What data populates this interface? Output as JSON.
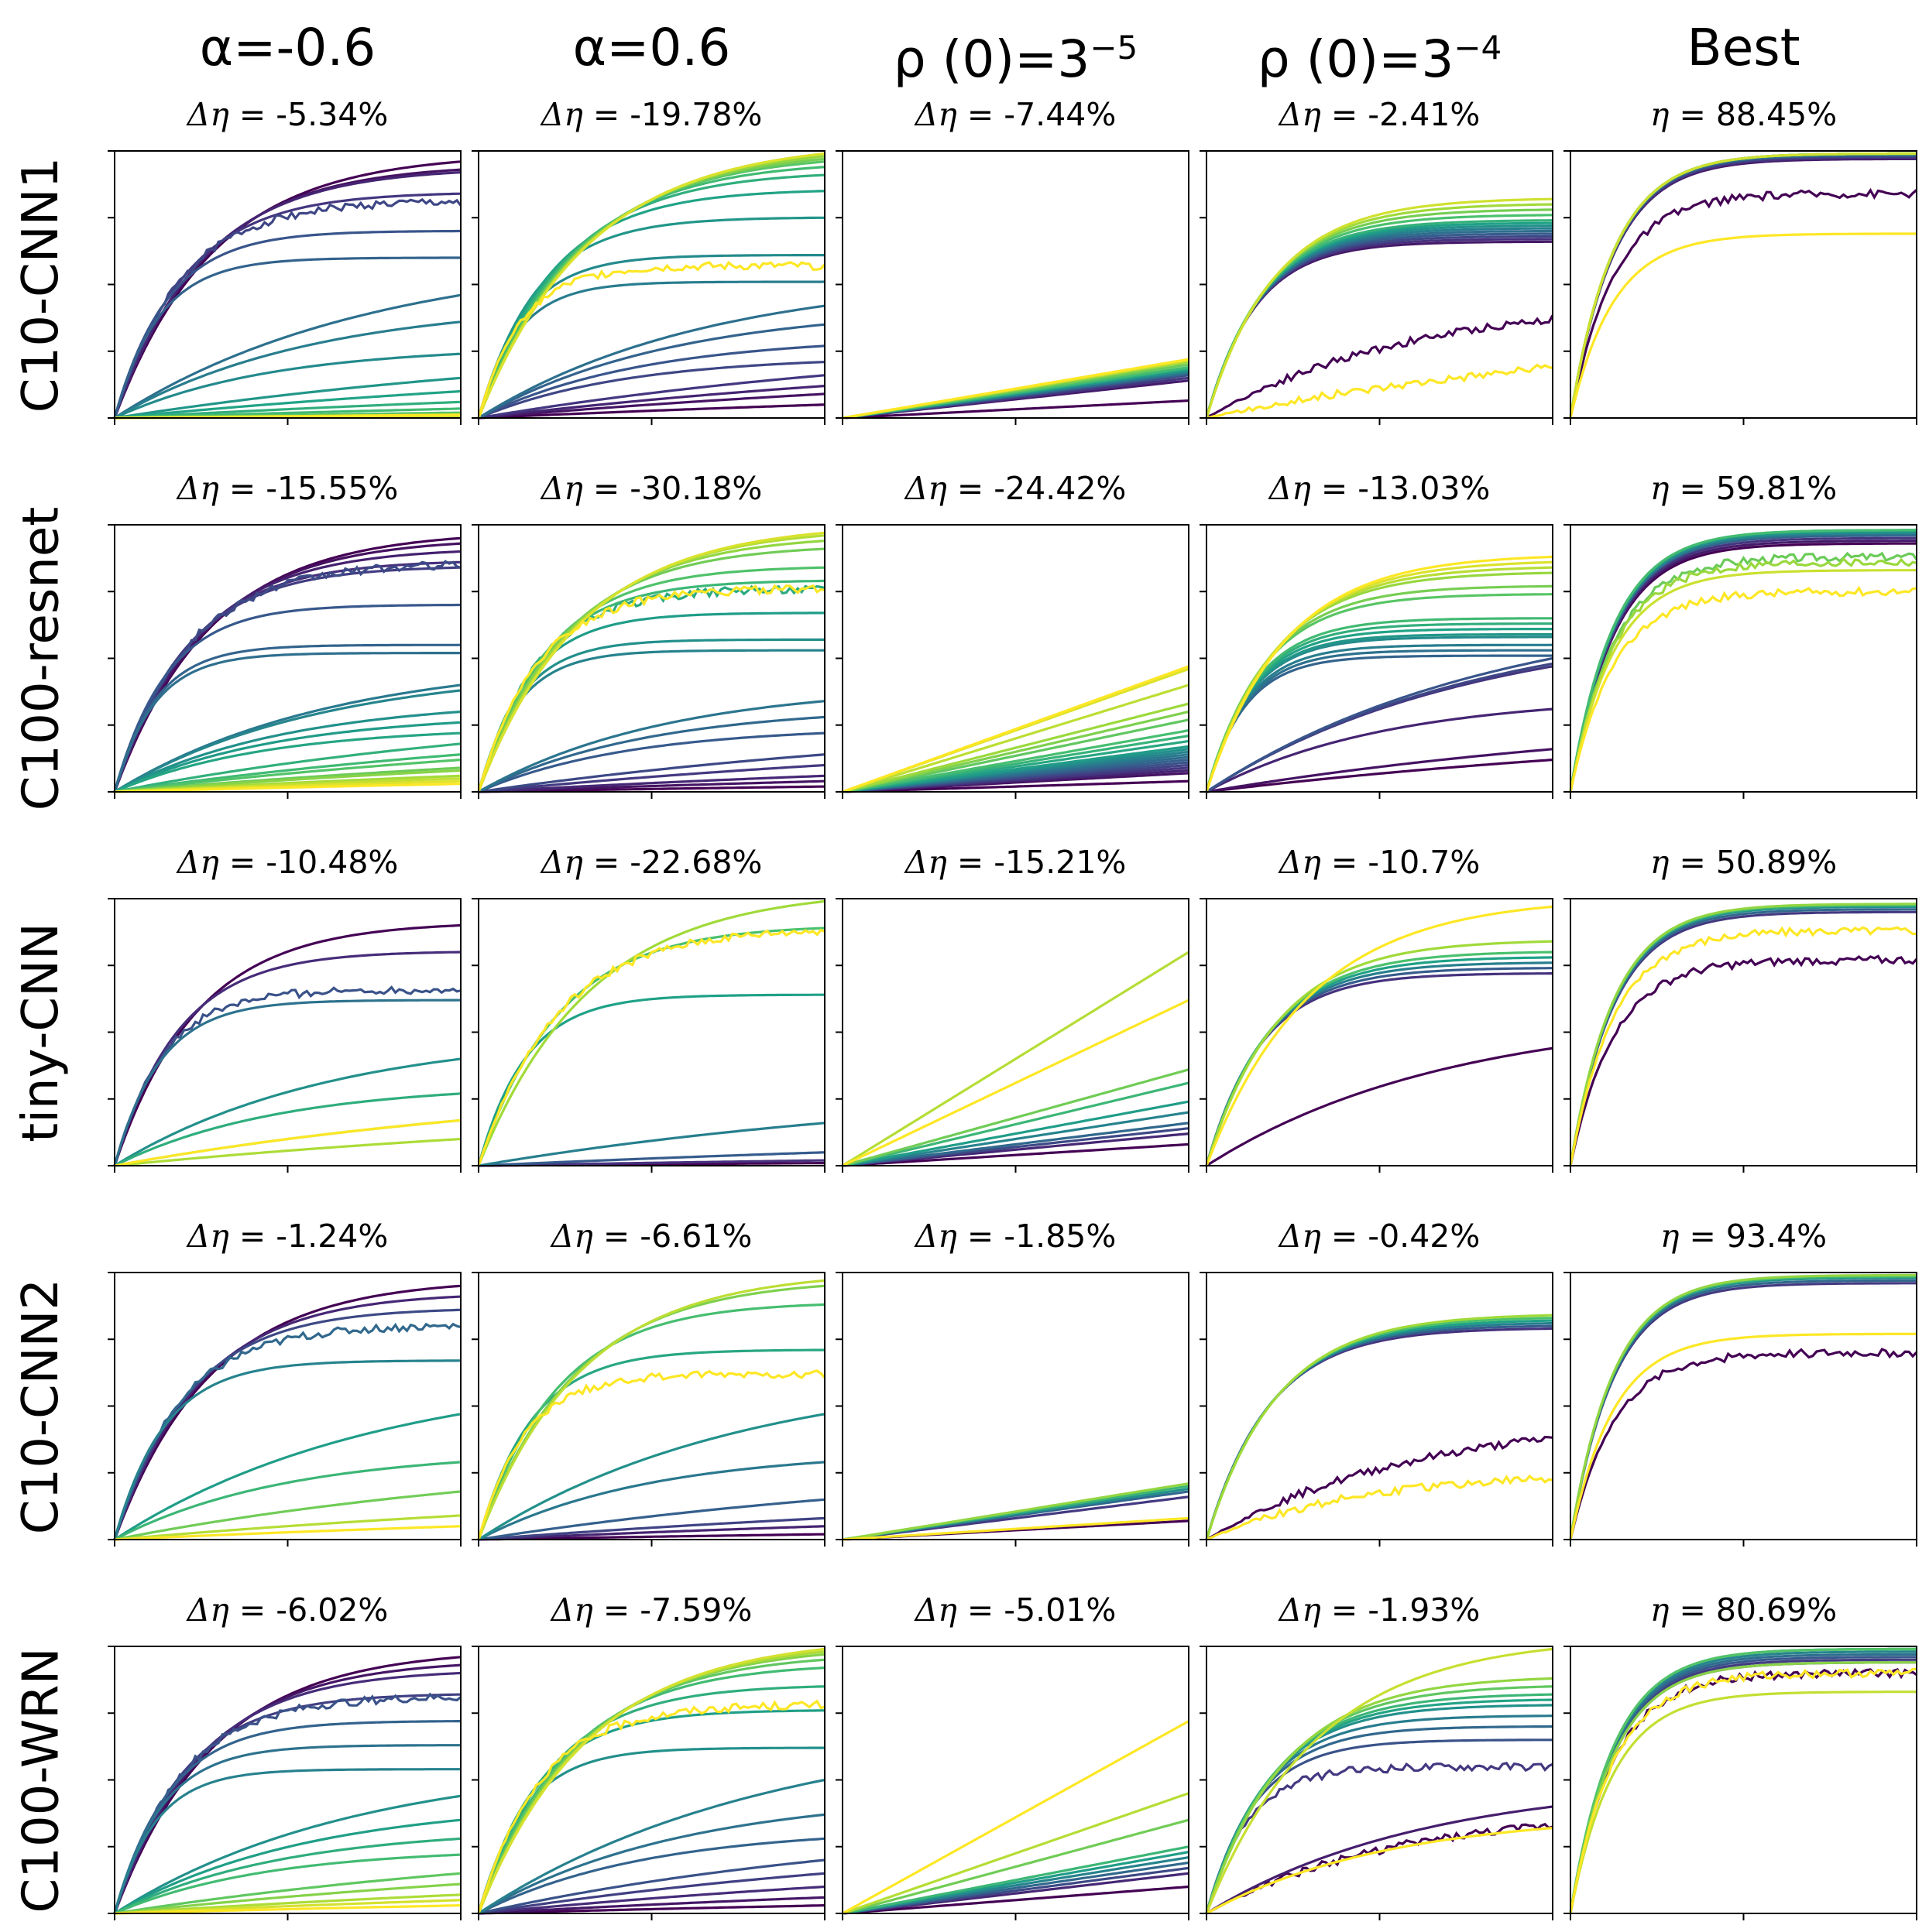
{
  "figure": {
    "column_headers": [
      {
        "label": "α=-0.6"
      },
      {
        "label": "α=0.6"
      },
      {
        "label": "ρ (0)=3",
        "sup": "−5"
      },
      {
        "label": "ρ (0)=3",
        "sup": "−4"
      },
      {
        "label": "Best"
      }
    ],
    "row_headers": [
      "C10-CNN1",
      "C100-resnet",
      "tiny-CNN",
      "C10-CNN2",
      "C100-WRN"
    ],
    "colormap": [
      "#440154",
      "#46327e",
      "#365c8d",
      "#277f8e",
      "#1fa187",
      "#4ac16d",
      "#a0da39",
      "#fde725"
    ]
  },
  "chart_data": [
    {
      "type": "line",
      "row": "C10-CNN1",
      "column": "α=-0.6",
      "title_symbol": "Δη",
      "title_value": " = -5.34%",
      "ylim": [
        0,
        1
      ],
      "series": [
        {
          "values": [
            0.96,
            0.93,
            0.92,
            0.84,
            0.81,
            0.7,
            0.6,
            0.46,
            0.36,
            0.24,
            0.15,
            0.1,
            0.06,
            0.035,
            0.02,
            0.013,
            0.008,
            0.005,
            0.01,
            0.012
          ]
        }
      ],
      "noisy": [
        0.81
      ]
    },
    {
      "type": "line",
      "row": "C10-CNN1",
      "column": "α=0.6",
      "title_symbol": "Δη",
      "title_value": " = -19.78%",
      "ylim": [
        0,
        1
      ],
      "series": [
        {
          "values": [
            0.05,
            0.09,
            0.12,
            0.16,
            0.21,
            0.27,
            0.35,
            0.42,
            0.51,
            0.61,
            0.75,
            0.85,
            0.91,
            0.94,
            0.96,
            0.97,
            0.98,
            0.99,
            0.99,
            0.57
          ]
        }
      ],
      "noisy": [
        0.57
      ]
    },
    {
      "type": "line",
      "row": "C10-CNN1",
      "column": "ρ (0)=3⁻⁵",
      "title_symbol": "Δη",
      "title_value": " = -7.44%",
      "ylim": [
        0,
        1
      ],
      "series": [
        {
          "values": [
            0.065,
            0.14,
            0.15,
            0.16,
            0.165,
            0.17,
            0.175,
            0.18,
            0.185,
            0.19,
            0.2,
            0.21,
            0.215,
            0.22
          ]
        }
      ],
      "noisy": []
    },
    {
      "type": "line",
      "row": "C10-CNN1",
      "column": "ρ (0)=3⁻⁴",
      "title_symbol": "Δη",
      "title_value": " = -2.41%",
      "ylim": [
        0,
        1
      ],
      "series": [
        {
          "values": [
            0.37,
            0.66,
            0.67,
            0.68,
            0.69,
            0.7,
            0.71,
            0.72,
            0.73,
            0.74,
            0.76,
            0.78,
            0.8,
            0.82,
            0.19
          ]
        }
      ],
      "noisy": [
        0.37,
        0.19
      ]
    },
    {
      "type": "line",
      "row": "C10-CNN1",
      "column": "Best",
      "title_symbol": "η",
      "title_value": " = 88.45%",
      "ylim": [
        0,
        1
      ],
      "series": [
        {
          "values": [
            0.84,
            0.97,
            0.975,
            0.98,
            0.985,
            0.985,
            0.99,
            0.99,
            0.99,
            0.99,
            0.99,
            0.99,
            0.99,
            0.99,
            0.69
          ]
        }
      ],
      "noisy": [
        0.84
      ]
    },
    {
      "type": "line",
      "row": "C100-resnet",
      "column": "α=-0.6",
      "title_symbol": "Δη",
      "title_value": " = -15.55%",
      "ylim": [
        0,
        1
      ],
      "series": [
        {
          "values": [
            0.95,
            0.93,
            0.9,
            0.86,
            0.84,
            0.85,
            0.7,
            0.55,
            0.52,
            0.4,
            0.38,
            0.3,
            0.26,
            0.22,
            0.18,
            0.14,
            0.12,
            0.09,
            0.08,
            0.06,
            0.05,
            0.04,
            0.03
          ]
        }
      ],
      "noisy": [
        0.85
      ]
    },
    {
      "type": "line",
      "row": "C100-resnet",
      "column": "α=0.6",
      "title_symbol": "Δη",
      "title_value": " = -30.18%",
      "ylim": [
        0,
        1
      ],
      "series": [
        {
          "values": [
            0.02,
            0.04,
            0.06,
            0.1,
            0.14,
            0.22,
            0.28,
            0.34,
            0.53,
            0.57,
            0.67,
            0.76,
            0.79,
            0.84,
            0.91,
            0.94,
            0.96,
            0.97,
            0.76
          ]
        }
      ],
      "noisy": [
        0.76
      ]
    },
    {
      "type": "line",
      "row": "C100-resnet",
      "column": "ρ (0)=3⁻⁵",
      "title_symbol": "Δη",
      "title_value": " = -24.42%",
      "ylim": [
        0,
        1
      ],
      "series": [
        {
          "values": [
            0.04,
            0.07,
            0.08,
            0.09,
            0.1,
            0.11,
            0.12,
            0.13,
            0.14,
            0.15,
            0.16,
            0.17,
            0.19,
            0.21,
            0.23,
            0.27,
            0.3,
            0.33,
            0.4,
            0.46,
            0.47
          ]
        }
      ],
      "noisy": []
    },
    {
      "type": "line",
      "row": "C100-resnet",
      "column": "ρ (0)=3⁻⁴",
      "title_symbol": "Δη",
      "title_value": " = -13.03%",
      "ylim": [
        0,
        1
      ],
      "series": [
        {
          "values": [
            0.12,
            0.16,
            0.31,
            0.47,
            0.48,
            0.5,
            0.51,
            0.53,
            0.55,
            0.58,
            0.59,
            0.61,
            0.63,
            0.65,
            0.74,
            0.77,
            0.82,
            0.84,
            0.86,
            0.88
          ]
        }
      ],
      "noisy": []
    },
    {
      "type": "line",
      "row": "C100-resnet",
      "column": "Best",
      "title_symbol": "η",
      "title_value": " = 59.81%",
      "ylim": [
        0,
        1
      ],
      "series": [
        {
          "values": [
            0.93,
            0.94,
            0.95,
            0.96,
            0.96,
            0.965,
            0.97,
            0.975,
            0.98,
            0.98,
            0.88,
            0.86,
            0.83,
            0.75
          ]
        }
      ],
      "noisy": [
        0.88,
        0.86,
        0.75
      ]
    },
    {
      "type": "line",
      "row": "tiny-CNN",
      "column": "α=-0.6",
      "title_symbol": "Δη",
      "title_value": " = -10.48%",
      "ylim": [
        0,
        1
      ],
      "series": [
        {
          "values": [
            0.9,
            0.8,
            0.66,
            0.62,
            0.4,
            0.27,
            0.17,
            0.1,
            0.17
          ]
        }
      ],
      "noisy": [
        0.66
      ]
    },
    {
      "type": "line",
      "row": "tiny-CNN",
      "column": "α=0.6",
      "title_symbol": "Δη",
      "title_value": " = -22.68%",
      "ylim": [
        0,
        1
      ],
      "series": [
        {
          "values": [
            0.01,
            0.02,
            0.05,
            0.16,
            0.64,
            0.89,
            0.99,
            0.88
          ]
        }
      ],
      "noisy": [
        0.88
      ]
    },
    {
      "type": "line",
      "row": "tiny-CNN",
      "column": "ρ (0)=3⁻⁵",
      "title_symbol": "Δη",
      "title_value": " = -15.21%",
      "ylim": [
        0,
        1
      ],
      "series": [
        {
          "values": [
            0.08,
            0.12,
            0.14,
            0.16,
            0.2,
            0.24,
            0.31,
            0.36,
            0.8,
            0.62
          ]
        }
      ],
      "noisy": []
    },
    {
      "type": "line",
      "row": "tiny-CNN",
      "column": "ρ (0)=3⁻⁴",
      "title_symbol": "Δη",
      "title_value": " = -10.7%",
      "ylim": [
        0,
        1
      ],
      "series": [
        {
          "values": [
            0.44,
            0.72,
            0.74,
            0.76,
            0.78,
            0.8,
            0.84,
            0.97
          ]
        }
      ],
      "noisy": []
    },
    {
      "type": "line",
      "row": "tiny-CNN",
      "column": "Best",
      "title_symbol": "η",
      "title_value": " = 50.89%",
      "ylim": [
        0,
        1
      ],
      "series": [
        {
          "values": [
            0.77,
            0.95,
            0.96,
            0.97,
            0.975,
            0.98,
            0.88
          ]
        }
      ],
      "noisy": [
        0.77,
        0.88
      ]
    },
    {
      "type": "line",
      "row": "C10-CNN2",
      "column": "α=-0.6",
      "title_symbol": "Δη",
      "title_value": " = -1.24%",
      "ylim": [
        0,
        1
      ],
      "series": [
        {
          "values": [
            0.95,
            0.91,
            0.86,
            0.8,
            0.67,
            0.47,
            0.29,
            0.18,
            0.09,
            0.05
          ]
        }
      ],
      "noisy": [
        0.8
      ]
    },
    {
      "type": "line",
      "row": "C10-CNN2",
      "column": "α=0.6",
      "title_symbol": "Δη",
      "title_value": " = -6.61%",
      "ylim": [
        0,
        1
      ],
      "series": [
        {
          "values": [
            0.02,
            0.05,
            0.08,
            0.15,
            0.29,
            0.47,
            0.71,
            0.88,
            0.95,
            0.97,
            0.62
          ]
        }
      ],
      "noisy": [
        0.62
      ]
    },
    {
      "type": "line",
      "row": "C10-CNN2",
      "column": "ρ (0)=3⁻⁵",
      "title_symbol": "Δη",
      "title_value": " = -1.85%",
      "ylim": [
        0,
        1
      ],
      "series": [
        {
          "values": [
            0.07,
            0.16,
            0.18,
            0.19,
            0.2,
            0.21,
            0.08
          ]
        }
      ],
      "noisy": []
    },
    {
      "type": "line",
      "row": "C10-CNN2",
      "column": "ρ (0)=3⁻⁴",
      "title_symbol": "Δη",
      "title_value": " = -0.42%",
      "ylim": [
        0,
        1
      ],
      "series": [
        {
          "values": [
            0.38,
            0.79,
            0.8,
            0.81,
            0.82,
            0.83,
            0.84,
            0.23
          ]
        }
      ],
      "noisy": [
        0.38,
        0.23
      ]
    },
    {
      "type": "line",
      "row": "C10-CNN2",
      "column": "Best",
      "title_symbol": "η",
      "title_value": " = 93.4%",
      "ylim": [
        0,
        1
      ],
      "series": [
        {
          "values": [
            0.7,
            0.96,
            0.97,
            0.98,
            0.985,
            0.99,
            0.77
          ]
        }
      ],
      "noisy": [
        0.7
      ]
    },
    {
      "type": "line",
      "row": "C100-WRN",
      "column": "α=-0.6",
      "title_symbol": "Δη",
      "title_value": " = -6.02%",
      "ylim": [
        0,
        1
      ],
      "series": [
        {
          "values": [
            0.96,
            0.93,
            0.9,
            0.82,
            0.81,
            0.72,
            0.63,
            0.54,
            0.44,
            0.35,
            0.28,
            0.22,
            0.15,
            0.11,
            0.07,
            0.05,
            0.03
          ]
        }
      ],
      "noisy": [
        0.81
      ]
    },
    {
      "type": "line",
      "row": "C100-WRN",
      "column": "α=0.6",
      "title_symbol": "Δη",
      "title_value": " = -7.59%",
      "ylim": [
        0,
        1
      ],
      "series": [
        {
          "values": [
            0.03,
            0.06,
            0.1,
            0.15,
            0.2,
            0.28,
            0.37,
            0.5,
            0.62,
            0.76,
            0.85,
            0.92,
            0.95,
            0.97,
            0.98,
            0.99,
            0.78
          ]
        }
      ],
      "noisy": [
        0.78
      ]
    },
    {
      "type": "line",
      "row": "C100-WRN",
      "column": "ρ (0)=3⁻⁵",
      "title_symbol": "Δη",
      "title_value": " = -5.01%",
      "ylim": [
        0,
        1
      ],
      "series": [
        {
          "values": [
            0.1,
            0.15,
            0.17,
            0.19,
            0.21,
            0.23,
            0.25,
            0.35,
            0.45,
            0.72
          ]
        }
      ],
      "noisy": []
    },
    {
      "type": "line",
      "row": "C100-WRN",
      "column": "ρ (0)=3⁻⁴",
      "title_symbol": "Δη",
      "title_value": " = -1.93%",
      "ylim": [
        0,
        1
      ],
      "series": [
        {
          "values": [
            0.33,
            0.4,
            0.55,
            0.65,
            0.7,
            0.74,
            0.78,
            0.8,
            0.82,
            0.85,
            0.88,
            0.99,
            0.32
          ]
        }
      ],
      "noisy": [
        0.33,
        0.55
      ]
    },
    {
      "type": "line",
      "row": "C100-WRN",
      "column": "Best",
      "title_symbol": "η",
      "title_value": " = 80.69%",
      "ylim": [
        0,
        1
      ],
      "series": [
        {
          "values": [
            0.9,
            0.94,
            0.95,
            0.96,
            0.97,
            0.98,
            0.99,
            0.99,
            0.99,
            0.94,
            0.83,
            0.9
          ]
        }
      ],
      "noisy": [
        0.9
      ]
    }
  ]
}
